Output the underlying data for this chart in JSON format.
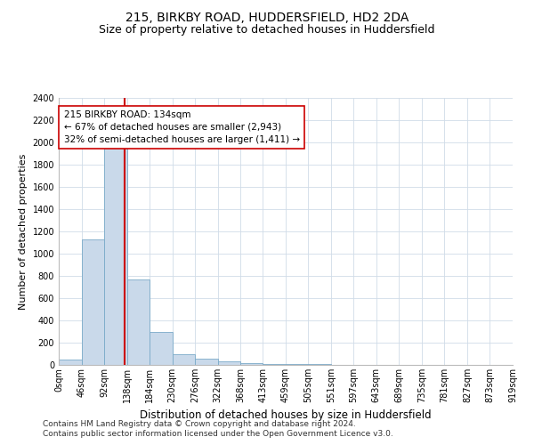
{
  "title1": "215, BIRKBY ROAD, HUDDERSFIELD, HD2 2DA",
  "title2": "Size of property relative to detached houses in Huddersfield",
  "xlabel": "Distribution of detached houses by size in Huddersfield",
  "ylabel": "Number of detached properties",
  "bin_edges": [
    0,
    46,
    92,
    138,
    184,
    230,
    276,
    322,
    368,
    413,
    459,
    505,
    551,
    597,
    643,
    689,
    735,
    781,
    827,
    873,
    919
  ],
  "bin_counts": [
    50,
    1130,
    1950,
    770,
    295,
    100,
    55,
    30,
    20,
    10,
    8,
    5,
    3,
    2,
    2,
    1,
    1,
    1,
    1,
    1
  ],
  "bar_facecolor": "#c9d9ea",
  "bar_edgecolor": "#7aaac8",
  "vline_x": 134,
  "vline_color": "#cc0000",
  "annotation_text": "215 BIRKBY ROAD: 134sqm\n← 67% of detached houses are smaller (2,943)\n32% of semi-detached houses are larger (1,411) →",
  "annotation_box_edgecolor": "#cc0000",
  "annotation_box_facecolor": "white",
  "ylim": [
    0,
    2400
  ],
  "yticks": [
    0,
    200,
    400,
    600,
    800,
    1000,
    1200,
    1400,
    1600,
    1800,
    2000,
    2200,
    2400
  ],
  "xtick_labels": [
    "0sqm",
    "46sqm",
    "92sqm",
    "138sqm",
    "184sqm",
    "230sqm",
    "276sqm",
    "322sqm",
    "368sqm",
    "413sqm",
    "459sqm",
    "505sqm",
    "551sqm",
    "597sqm",
    "643sqm",
    "689sqm",
    "735sqm",
    "781sqm",
    "827sqm",
    "873sqm",
    "919sqm"
  ],
  "grid_color": "#d0dce8",
  "footer1": "Contains HM Land Registry data © Crown copyright and database right 2024.",
  "footer2": "Contains public sector information licensed under the Open Government Licence v3.0.",
  "title1_fontsize": 10,
  "title2_fontsize": 9,
  "xlabel_fontsize": 8.5,
  "ylabel_fontsize": 8,
  "tick_fontsize": 7,
  "annotation_fontsize": 7.5,
  "footer_fontsize": 6.5
}
